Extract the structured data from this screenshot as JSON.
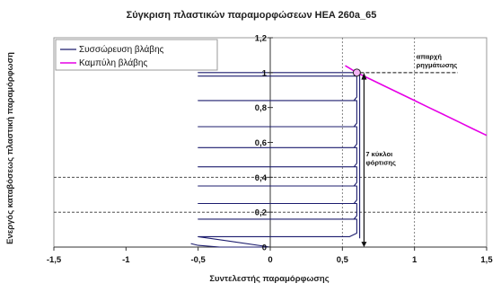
{
  "chart_data": {
    "type": "line",
    "title": "Σύγκριση πλαστικών παραμορφώσεων HEA 260a_65",
    "xlabel": "Συντελεστής παραμόρφωσης",
    "ylabel": "Ενεργός καταβόσεως πλαστική παραμόρφωση",
    "xlim": [
      -1.5,
      1.5
    ],
    "ylim": [
      0,
      1.2
    ],
    "x_ticks": [
      "-1,5",
      "-1",
      "-0,5",
      "0",
      "0,5",
      "1",
      "1,5"
    ],
    "y_ticks": [
      "0",
      "0,2",
      "0,4",
      "0,6",
      "0,8",
      "1",
      "1,2"
    ],
    "grid": false,
    "legend_position": "top-left",
    "series": [
      {
        "name": "Συσσώρευση βλάβης",
        "color": "#1c1c6e",
        "x": [
          -0.55,
          -0.5,
          -0.35,
          0.0,
          -0.5,
          0.55,
          0.6,
          0.6,
          -0.5,
          0.58,
          0.6,
          0.6,
          -0.5,
          0.58,
          0.6,
          0.6,
          -0.5,
          0.58,
          0.6,
          0.6,
          -0.5,
          0.58,
          0.6,
          0.6,
          -0.5,
          0.58,
          0.6,
          0.6,
          -0.5,
          0.58,
          0.6,
          0.6,
          -0.5,
          0.58,
          0.6,
          0.6,
          -0.5,
          0.58,
          0.6,
          0.6,
          -0.5,
          0.58,
          0.62,
          0.62
        ],
        "y": [
          0.02,
          0.01,
          0.0,
          0.0,
          0.06,
          0.06,
          0.08,
          0.16,
          0.16,
          0.16,
          0.18,
          0.25,
          0.25,
          0.25,
          0.27,
          0.35,
          0.35,
          0.35,
          0.37,
          0.46,
          0.46,
          0.46,
          0.48,
          0.57,
          0.57,
          0.57,
          0.59,
          0.69,
          0.69,
          0.69,
          0.71,
          0.84,
          0.84,
          0.84,
          0.86,
          0.98,
          0.98,
          0.98,
          1.0,
          1.0,
          1.0,
          1.0,
          1.0,
          0.05
        ]
      },
      {
        "name": "Καμπύλη βλάβης",
        "color": "#e600e6",
        "x": [
          0.52,
          0.6,
          0.7,
          0.8,
          0.9,
          1.0,
          1.1,
          1.2,
          1.3,
          1.4,
          1.5
        ],
        "y": [
          1.04,
          1.0,
          0.96,
          0.92,
          0.88,
          0.84,
          0.8,
          0.76,
          0.72,
          0.68,
          0.64
        ]
      }
    ],
    "reference_lines": {
      "horizontal_dashed_y": [
        0.2,
        0.4
      ],
      "vertical_dashed_x": [
        0.5,
        1.0
      ]
    },
    "annotations": [
      {
        "text": "απαρχή",
        "x": 1.0,
        "y": 1.08
      },
      {
        "text": "ρηγμάτωσης",
        "x": 1.0,
        "y": 1.03
      },
      {
        "text": "7 κύκλοι",
        "x": 0.65,
        "y": 0.52
      },
      {
        "text": "φόρτισης",
        "x": 0.65,
        "y": 0.47
      }
    ],
    "marker": {
      "x": 0.6,
      "y": 1.0
    }
  }
}
